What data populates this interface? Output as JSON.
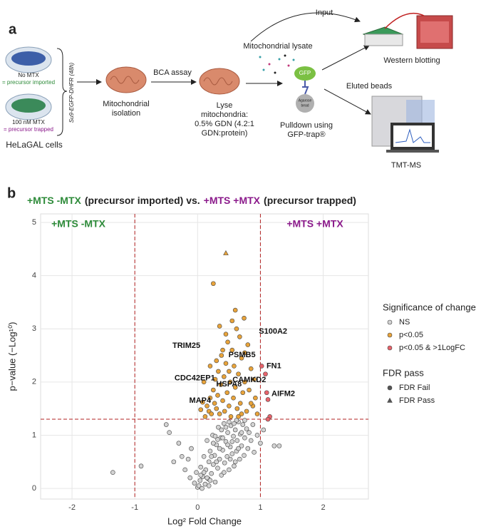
{
  "panel_a": {
    "label": "a",
    "dish1": "No MTX",
    "dish1_note": "= precursor imported",
    "dish2": "100 nM MTX",
    "dish2_note": "= precursor trapped",
    "cells": "HeLaGAL cells",
    "construct": "Su9-EGFP-DHFR (48h)",
    "isolation": [
      "Mitochondrial",
      "isolation"
    ],
    "bca": "BCA assay",
    "lyse": [
      "Lyse",
      "mitochondria:",
      "0.5% GDN (4.2:1",
      "GDN:protein)"
    ],
    "lysate": "Mitochondrial lysate",
    "input": "Input",
    "gfp": "GFP",
    "bead": [
      "Agarose",
      "bead"
    ],
    "pulldown": [
      "Pulldown using",
      "GFP-trap®"
    ],
    "eluted": "Eluted beads",
    "western": "Western blotting",
    "tmt": "TMT-MS"
  },
  "chart_data": {
    "type": "scatter",
    "panel_label": "b",
    "title_parts": [
      {
        "text": "+MTS -MTX",
        "color": "#2e8b3a"
      },
      {
        "text": "(precursor imported) vs.",
        "color": "#222222"
      },
      {
        "text": "+MTS +MTX",
        "color": "#8b1a8b"
      },
      {
        "text": "(precursor trapped)",
        "color": "#222222"
      }
    ],
    "corner_labels": [
      {
        "text": "+MTS -MTX",
        "color": "#2e8b3a",
        "corner": "top-left"
      },
      {
        "text": "+MTS +MTX",
        "color": "#8b1a8b",
        "corner": "top-right"
      }
    ],
    "x_label": "Log² Fold Change",
    "y_label": "p−value (−Log¹⁰)",
    "xlim": [
      -2.5,
      2.72
    ],
    "ylim": [
      -0.2,
      5.16
    ],
    "xticks": [
      -2,
      -1,
      0,
      1,
      2
    ],
    "yticks": [
      0,
      1,
      2,
      3,
      4,
      5
    ],
    "grid": true,
    "vlines": [
      -1,
      1
    ],
    "hline": 1.3,
    "threshold_color": "#b22222",
    "series": [
      {
        "color": "#d3d3d3",
        "shape": "circle",
        "x": [
          -1.35,
          -0.9,
          -0.5,
          -0.45,
          -0.38,
          -0.3,
          -0.25,
          -0.2,
          -0.15,
          -0.12,
          -0.1,
          -0.05,
          -0.02,
          0,
          0.02,
          0.04,
          0.05,
          0.07,
          0.08,
          0.1,
          0.12,
          0.13,
          0.15,
          0.17,
          0.18,
          0.2,
          0.22,
          0.24,
          0.25,
          0.27,
          0.28,
          0.3,
          0.32,
          0.33,
          0.35,
          0.37,
          0.38,
          0.4,
          0.42,
          0.43,
          0.45,
          0.47,
          0.48,
          0.5,
          0.52,
          0.53,
          0.55,
          0.57,
          0.58,
          0.6,
          0.62,
          0.63,
          0.65,
          0.67,
          0.68,
          0.7,
          0.72,
          0.74,
          0.75,
          0.78,
          0.8,
          0.82,
          0.85,
          0.88,
          0.9,
          0.95,
          1.0,
          1.05,
          1.22,
          1.3,
          0.05,
          0.1,
          0.15,
          0.2,
          0.25,
          0.3,
          0.35,
          0.4,
          0.45,
          0.5,
          0.55,
          0.6,
          0.65,
          0.7,
          0.75,
          0.22,
          0.32,
          0.42,
          0.52,
          0.62,
          0.18,
          0.28,
          0.38,
          0.48,
          0.58
        ],
        "values": [
          0.3,
          0.42,
          1.2,
          1.05,
          0.5,
          0.85,
          0.6,
          0.35,
          0.55,
          0.2,
          0.75,
          0.1,
          0.3,
          0.02,
          0.05,
          0.15,
          0.4,
          0.0,
          0.22,
          0.6,
          0.08,
          0.35,
          0.9,
          0.18,
          0.5,
          0.7,
          0.28,
          1.0,
          0.45,
          0.62,
          0.12,
          0.82,
          0.38,
          1.15,
          0.55,
          0.95,
          0.25,
          0.72,
          1.22,
          0.48,
          0.88,
          0.6,
          1.05,
          0.35,
          0.78,
          1.18,
          0.65,
          0.98,
          0.42,
          1.1,
          0.7,
          0.9,
          1.25,
          0.55,
          1.02,
          0.8,
          1.2,
          0.62,
          0.95,
          1.12,
          0.75,
          1.05,
          0.9,
          1.2,
          0.68,
          1.0,
          0.85,
          1.1,
          0.8,
          0.8,
          0.25,
          0.3,
          0.2,
          0.15,
          0.85,
          0.5,
          0.75,
          0.95,
          1.15,
          1.25,
          0.88,
          0.5,
          0.75,
          1.05,
          1.28,
          0.6,
          0.92,
          0.3,
          0.55,
          1.28,
          0.05,
          0.98,
          1.1,
          0.82,
          1.22
        ]
      },
      {
        "color": "#e8a33a",
        "shape": "circle",
        "x": [
          0.12,
          0.15,
          0.18,
          0.2,
          0.22,
          0.25,
          0.27,
          0.28,
          0.3,
          0.32,
          0.33,
          0.35,
          0.37,
          0.38,
          0.4,
          0.42,
          0.43,
          0.45,
          0.47,
          0.48,
          0.5,
          0.52,
          0.53,
          0.55,
          0.57,
          0.58,
          0.6,
          0.62,
          0.63,
          0.65,
          0.67,
          0.68,
          0.7,
          0.72,
          0.74,
          0.75,
          0.78,
          0.8,
          0.82,
          0.85,
          0.88,
          0.9,
          0.92,
          0.95,
          0.1,
          0.08,
          0.3,
          0.55,
          0.6,
          0.45,
          0.35,
          0.65,
          0.25,
          0.05,
          0.7,
          0.5,
          0.4,
          0.2,
          0.85,
          0.75
        ],
        "values": [
          1.35,
          1.55,
          1.45,
          1.7,
          1.4,
          1.85,
          1.6,
          2.05,
          1.5,
          1.75,
          2.2,
          1.4,
          1.95,
          2.5,
          1.65,
          2.1,
          1.45,
          2.35,
          1.8,
          2.75,
          1.55,
          2.0,
          1.35,
          2.6,
          1.7,
          2.3,
          1.9,
          3.0,
          1.5,
          2.15,
          2.85,
          1.6,
          2.45,
          1.8,
          3.2,
          2.0,
          1.45,
          2.7,
          1.85,
          2.25,
          1.55,
          2.05,
          1.7,
          1.4,
          2.0,
          1.62,
          2.4,
          3.15,
          3.35,
          2.9,
          3.05,
          1.35,
          3.85,
          1.48,
          1.4,
          2.2,
          2.6,
          2.3,
          1.6,
          2.55
        ]
      },
      {
        "color": "#e8a33a",
        "shape": "triangle",
        "x": [
          0.45
        ],
        "values": [
          4.42
        ]
      },
      {
        "color": "#e8636b",
        "shape": "circle",
        "x": [
          1.02,
          1.08,
          1.1,
          1.12,
          1.15,
          1.12
        ],
        "values": [
          2.3,
          2.15,
          1.8,
          1.67,
          1.35,
          1.3
        ]
      }
    ],
    "annotations": [
      {
        "text": "S100A2",
        "x": 0.93,
        "y": 2.95
      },
      {
        "text": "TRIM25",
        "x": 0.1,
        "y": 2.68
      },
      {
        "text": "PSMB5",
        "x": 0.73,
        "y": 2.4
      },
      {
        "text": "FN1",
        "x": 1.04,
        "y": 2.3
      },
      {
        "text": "CDC42EP1",
        "x": 0.3,
        "y": 1.95
      },
      {
        "text": "HSPA8",
        "x": 0.5,
        "y": 1.85
      },
      {
        "text": "CAMKD2",
        "x": 0.8,
        "y": 1.9
      },
      {
        "text": "MAP4",
        "x": 0.27,
        "y": 1.65
      },
      {
        "text": "AIFM2",
        "x": 1.12,
        "y": 1.67
      }
    ],
    "legends": [
      {
        "title": "Significance of change",
        "items": [
          {
            "label": "NS",
            "color": "#d3d3d3",
            "shape": "circle"
          },
          {
            "label": "p<0.05",
            "color": "#e8a33a",
            "shape": "circle"
          },
          {
            "label": "p<0.05 & >1LogFC",
            "color": "#e8636b",
            "shape": "circle"
          }
        ]
      },
      {
        "title": "FDR pass",
        "items": [
          {
            "label": "FDR Fail",
            "color": "#555555",
            "shape": "circle"
          },
          {
            "label": "FDR Pass",
            "color": "#555555",
            "shape": "triangle"
          }
        ]
      }
    ]
  }
}
